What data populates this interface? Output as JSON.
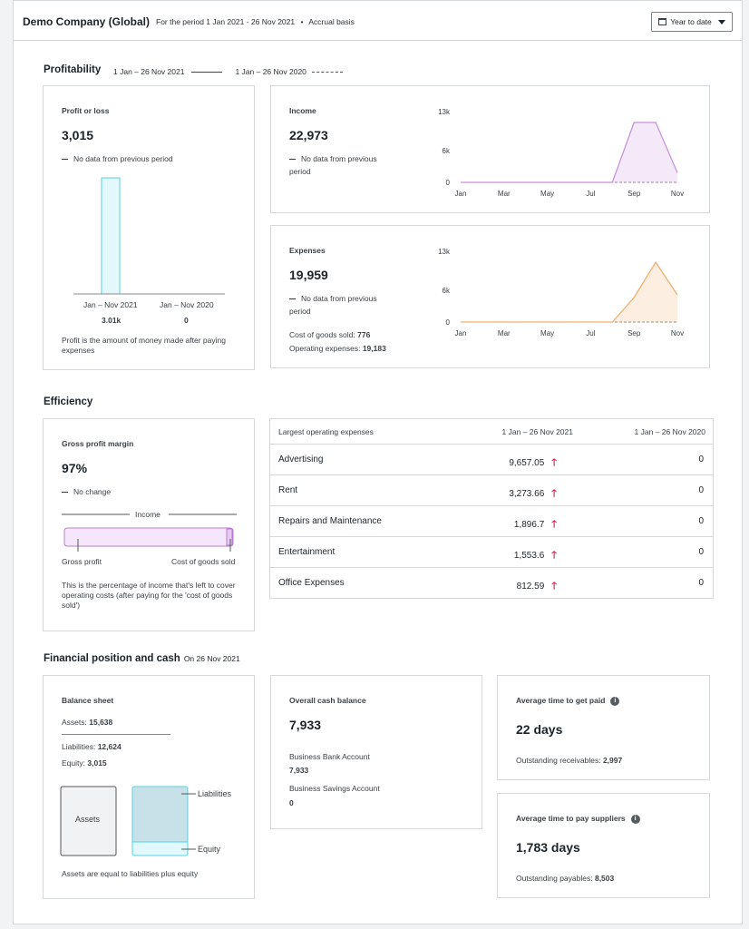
{
  "header": {
    "org_name": "Demo Company (Global)",
    "period_text": "For the period 1 Jan 2021 - 26 Nov 2021",
    "basis": "Accrual basis",
    "date_range_label": "Year to date"
  },
  "profitability": {
    "title": "Profitability",
    "legend_current": "1 Jan – 26 Nov 2021",
    "legend_previous": "1 Jan – 26 Nov 2020",
    "profit": {
      "title": "Profit or loss",
      "value": "3,015",
      "compare_text": "No data from previous period",
      "bar_label_current": "Jan – Nov 2021",
      "bar_label_previous": "Jan – Nov 2020",
      "bar_value_current": "3.01k",
      "bar_value_previous": "0",
      "footnote": "Profit is the amount of money made after paying expenses"
    },
    "income": {
      "title": "Income",
      "value": "22,973",
      "compare_text": "No data from previous period"
    },
    "expenses": {
      "title": "Expenses",
      "value": "19,959",
      "compare_text": "No data from previous period",
      "cogs_label": "Cost of goods sold:",
      "cogs_value": "776",
      "opex_label": "Operating expenses:",
      "opex_value": "19,183"
    }
  },
  "efficiency": {
    "title": "Efficiency",
    "gross_margin": {
      "title": "Gross profit margin",
      "value": "97%",
      "compare_text": "No change",
      "income_label": "Income",
      "gross_profit_label": "Gross profit",
      "cogs_label": "Cost of goods sold",
      "footnote": "This is the percentage of income that's left to cover operating costs (after paying for the 'cost of goods sold')"
    },
    "table": {
      "headers": [
        "Largest operating expenses",
        "1 Jan – 26 Nov 2021",
        "1 Jan – 26 Nov 2020"
      ],
      "rows": [
        {
          "name": "Advertising",
          "current": "9,657.05",
          "previous": "0"
        },
        {
          "name": "Rent",
          "current": "3,273.66",
          "previous": "0"
        },
        {
          "name": "Repairs and Maintenance",
          "current": "1,896.7",
          "previous": "0"
        },
        {
          "name": "Entertainment",
          "current": "1,553.6",
          "previous": "0"
        },
        {
          "name": "Office Expenses",
          "current": "812.59",
          "previous": "0"
        }
      ],
      "arrow_glyph": "🡑"
    }
  },
  "financial": {
    "title": "Financial position and cash",
    "date_text": "On 26 Nov 2021",
    "balance_sheet": {
      "title": "Balance sheet",
      "assets_label": "Assets:",
      "assets_value": "15,638",
      "liabilities_label": "Liabilities:",
      "liabilities_value": "12,624",
      "equity_label": "Equity:",
      "equity_value": "3,015",
      "diagram_assets": "Assets",
      "diagram_liabilities": "Liabilities",
      "diagram_equity": "Equity",
      "footnote": "Assets are equal to liabilities plus equity"
    },
    "cash": {
      "title": "Overall cash balance",
      "value": "7,933",
      "accounts": [
        {
          "name": "Business Bank Account",
          "value": "7,933"
        },
        {
          "name": "Business Savings Account",
          "value": "0"
        }
      ]
    },
    "get_paid": {
      "title": "Average time to get paid",
      "value": "22 days",
      "sub_label": "Outstanding receivables:",
      "sub_value": "2,997"
    },
    "pay_suppliers": {
      "title": "Average time to pay suppliers",
      "value": "1,783 days",
      "sub_label": "Outstanding payables:",
      "sub_value": "8,503"
    }
  },
  "chart_data": [
    {
      "type": "bar",
      "title": "Profit or loss",
      "categories": [
        "Jan – Nov 2021",
        "Jan – Nov 2020"
      ],
      "values": [
        3015,
        0
      ],
      "color": "#5ad0e0"
    },
    {
      "type": "area",
      "title": "Income",
      "x": [
        "Jan",
        "Feb",
        "Mar",
        "Apr",
        "May",
        "Jun",
        "Jul",
        "Aug",
        "Sep",
        "Oct",
        "Nov"
      ],
      "series": [
        {
          "values": [
            0,
            0,
            0,
            0,
            0,
            0,
            0,
            0,
            11000,
            11000,
            1800
          ]
        }
      ],
      "x_ticks": [
        "Jan",
        "Mar",
        "May",
        "Jul",
        "Sep",
        "Nov"
      ],
      "y_ticks": [
        "13k",
        "6k",
        "0"
      ],
      "ylim": [
        0,
        13000
      ],
      "color": "#c68fdc"
    },
    {
      "type": "area",
      "title": "Expenses",
      "x": [
        "Jan",
        "Feb",
        "Mar",
        "Apr",
        "May",
        "Jun",
        "Jul",
        "Aug",
        "Sep",
        "Oct",
        "Nov"
      ],
      "series": [
        {
          "values": [
            0,
            0,
            0,
            0,
            0,
            0,
            0,
            0,
            4500,
            11000,
            5000
          ]
        }
      ],
      "x_ticks": [
        "Jan",
        "Mar",
        "May",
        "Jul",
        "Sep",
        "Nov"
      ],
      "y_ticks": [
        "13k",
        "6k",
        "0"
      ],
      "ylim": [
        0,
        13000
      ],
      "color": "#f0ad6a"
    }
  ]
}
